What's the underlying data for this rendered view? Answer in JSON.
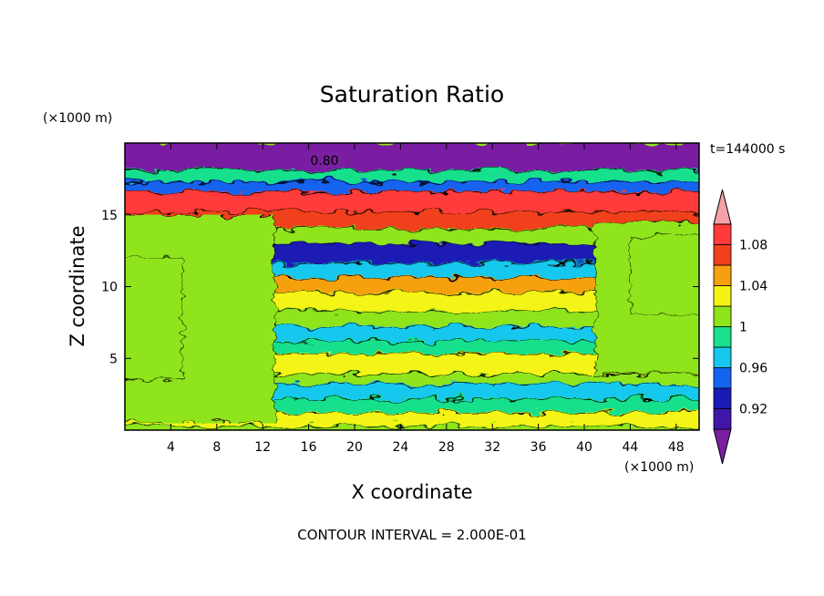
{
  "chart_data": {
    "type": "heatmap",
    "title": "Saturation Ratio",
    "xlabel": "X coordinate",
    "ylabel": "Z coordinate",
    "x_unit": "(×1000 m)",
    "y_unit": "(×1000 m)",
    "time_label": "t=144000 s",
    "footer": "CONTOUR INTERVAL = 2.000E-01",
    "contour_label": "0.80",
    "xlim": [
      0,
      50
    ],
    "ylim": [
      0,
      20
    ],
    "x_ticks": [
      4,
      8,
      12,
      16,
      20,
      24,
      28,
      32,
      36,
      40,
      44,
      48
    ],
    "x_tick_labels": [
      "4",
      "8",
      "12",
      "16",
      "20",
      "24",
      "28",
      "32",
      "36",
      "40",
      "44",
      "48"
    ],
    "y_ticks": [
      5,
      10,
      15
    ],
    "y_tick_labels": [
      "5",
      "10",
      "15"
    ],
    "colorbar": {
      "levels": [
        0.9,
        0.92,
        0.94,
        0.96,
        0.98,
        1.0,
        1.02,
        1.04,
        1.06,
        1.08,
        1.1
      ],
      "label_values": [
        0.92,
        0.96,
        1.0,
        1.04,
        1.08
      ],
      "labels": [
        "0.92",
        "0.96",
        "1",
        "1.04",
        "1.08"
      ],
      "colors": [
        "#7a1fa2",
        "#3f16a8",
        "#1a1ab4",
        "#1464f0",
        "#16c8ee",
        "#19e08c",
        "#8fe41a",
        "#f4f412",
        "#f6a010",
        "#f0401e",
        "#ff3a3a",
        "#f4a2a8"
      ]
    },
    "bands": [
      {
        "z": [
          18.1,
          20.0
        ],
        "value": 0.86
      },
      {
        "z": [
          17.3,
          18.1
        ],
        "value": 0.99
      },
      {
        "z": [
          16.6,
          17.3
        ],
        "value": 0.95
      },
      {
        "z": [
          15.2,
          16.6
        ],
        "value": 1.08
      },
      {
        "z": [
          14.0,
          15.2
        ],
        "value": 1.06
      },
      {
        "z": [
          13.0,
          14.0
        ],
        "value": 1.01
      },
      {
        "z": [
          11.6,
          13.0
        ],
        "value": 0.93
      },
      {
        "z": [
          10.6,
          11.6
        ],
        "value": 0.97
      },
      {
        "z": [
          9.6,
          10.6
        ],
        "value": 1.04
      },
      {
        "z": [
          8.3,
          9.6
        ],
        "value": 1.03
      },
      {
        "z": [
          7.2,
          8.3
        ],
        "value": 1.0
      },
      {
        "z": [
          6.2,
          7.2
        ],
        "value": 0.96
      },
      {
        "z": [
          5.3,
          6.2
        ],
        "value": 0.98
      },
      {
        "z": [
          3.9,
          5.3
        ],
        "value": 1.03
      },
      {
        "z": [
          3.2,
          3.9
        ],
        "value": 1.01
      },
      {
        "z": [
          2.2,
          3.2
        ],
        "value": 0.96
      },
      {
        "z": [
          1.2,
          2.2
        ],
        "value": 0.99
      },
      {
        "z": [
          0.3,
          1.2
        ],
        "value": 1.02
      },
      {
        "z": [
          0.0,
          0.3
        ],
        "value": 1.0
      }
    ],
    "side_regions": [
      {
        "x": [
          0,
          13
        ],
        "z": [
          0.5,
          15.0
        ],
        "value": 1.0
      },
      {
        "x": [
          0,
          5
        ],
        "z": [
          3.5,
          12.0
        ],
        "value": 1.01
      },
      {
        "x": [
          41,
          50
        ],
        "z": [
          4.0,
          14.5
        ],
        "value": 1.0
      },
      {
        "x": [
          44,
          50
        ],
        "z": [
          8.0,
          13.5
        ],
        "value": 1.01
      }
    ]
  }
}
